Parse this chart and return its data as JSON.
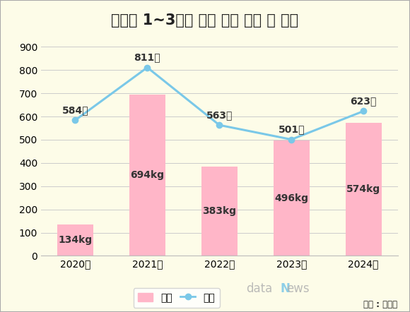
{
  "title": "연도별 1~3분기 마약 적발 건수 및 중량",
  "categories": [
    "2020년",
    "2021년",
    "2022년",
    "2023년",
    "2024년"
  ],
  "weight_values": [
    134,
    694,
    383,
    496,
    574
  ],
  "count_values": [
    584,
    811,
    563,
    501,
    623
  ],
  "weight_labels": [
    "134kg",
    "694kg",
    "383kg",
    "496kg",
    "574kg"
  ],
  "count_labels": [
    "584건",
    "811건",
    "563건",
    "501건",
    "623건"
  ],
  "bar_color": "#FFB6C8",
  "line_color": "#7AC8E8",
  "line_marker_fill": "#7AC8E8",
  "title_bg_color": "#F0C040",
  "chart_bg_color": "#FDFCE8",
  "border_color": "#D0D0D0",
  "ylim": [
    0,
    900
  ],
  "yticks": [
    0,
    100,
    200,
    300,
    400,
    500,
    600,
    700,
    800,
    900
  ],
  "legend_weight_label": "중량",
  "legend_count_label": "건수",
  "source_text": "자료 : 관세청",
  "title_fontsize": 15,
  "label_fontsize": 10,
  "axis_fontsize": 10,
  "legend_fontsize": 10
}
